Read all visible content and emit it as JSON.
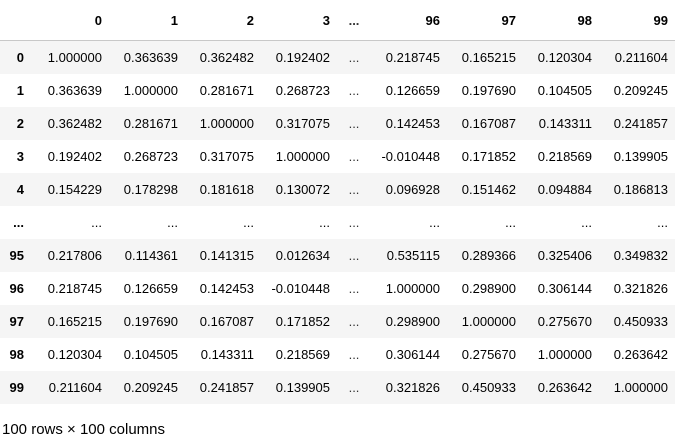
{
  "dataframe": {
    "columns": [
      "0",
      "1",
      "2",
      "3",
      "...",
      "96",
      "97",
      "98",
      "99"
    ],
    "rows": [
      {
        "index": "0",
        "cells": [
          "1.000000",
          "0.363639",
          "0.362482",
          "0.192402",
          "...",
          "0.218745",
          "0.165215",
          "0.120304",
          "0.211604"
        ]
      },
      {
        "index": "1",
        "cells": [
          "0.363639",
          "1.000000",
          "0.281671",
          "0.268723",
          "...",
          "0.126659",
          "0.197690",
          "0.104505",
          "0.209245"
        ]
      },
      {
        "index": "2",
        "cells": [
          "0.362482",
          "0.281671",
          "1.000000",
          "0.317075",
          "...",
          "0.142453",
          "0.167087",
          "0.143311",
          "0.241857"
        ]
      },
      {
        "index": "3",
        "cells": [
          "0.192402",
          "0.268723",
          "0.317075",
          "1.000000",
          "...",
          "-0.010448",
          "0.171852",
          "0.218569",
          "0.139905"
        ]
      },
      {
        "index": "4",
        "cells": [
          "0.154229",
          "0.178298",
          "0.181618",
          "0.130072",
          "...",
          "0.096928",
          "0.151462",
          "0.094884",
          "0.186813"
        ]
      },
      {
        "index": "...",
        "cells": [
          "...",
          "...",
          "...",
          "...",
          "...",
          "...",
          "...",
          "...",
          "..."
        ]
      },
      {
        "index": "95",
        "cells": [
          "0.217806",
          "0.114361",
          "0.141315",
          "0.012634",
          "...",
          "0.535115",
          "0.289366",
          "0.325406",
          "0.349832"
        ]
      },
      {
        "index": "96",
        "cells": [
          "0.218745",
          "0.126659",
          "0.142453",
          "-0.010448",
          "...",
          "1.000000",
          "0.298900",
          "0.306144",
          "0.321826"
        ]
      },
      {
        "index": "97",
        "cells": [
          "0.165215",
          "0.197690",
          "0.167087",
          "0.171852",
          "...",
          "0.298900",
          "1.000000",
          "0.275670",
          "0.450933"
        ]
      },
      {
        "index": "98",
        "cells": [
          "0.120304",
          "0.104505",
          "0.143311",
          "0.218569",
          "...",
          "0.306144",
          "0.275670",
          "1.000000",
          "0.263642"
        ]
      },
      {
        "index": "99",
        "cells": [
          "0.211604",
          "0.209245",
          "0.241857",
          "0.139905",
          "...",
          "0.321826",
          "0.450933",
          "0.263642",
          "1.000000"
        ]
      }
    ],
    "shape_note": "100 rows × 100 columns"
  },
  "colors": {
    "row_stripe": "#f5f5f5",
    "header_rule": "#c8c8c8",
    "text": "#000000"
  }
}
